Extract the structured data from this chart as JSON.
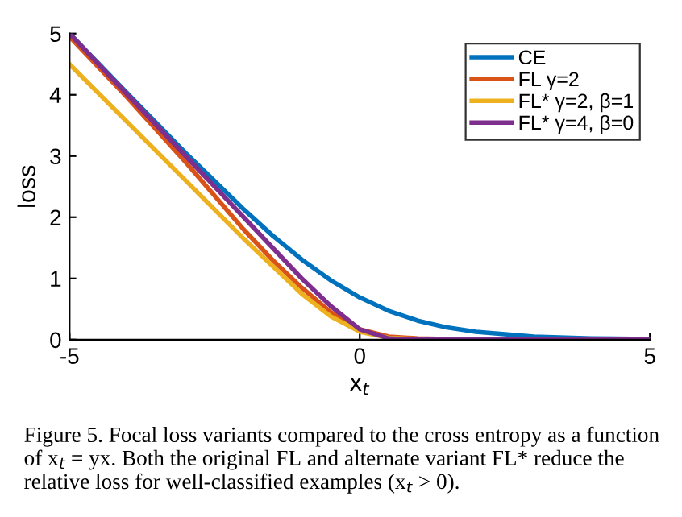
{
  "chart_data": {
    "type": "line",
    "xlabel": "x$_{t}$",
    "ylabel": "loss",
    "xlim": [
      -5,
      5
    ],
    "ylim": [
      0,
      5
    ],
    "xticks": [
      -5,
      0,
      5
    ],
    "yticks": [
      0,
      1,
      2,
      3,
      4,
      5
    ],
    "grid": false,
    "legend": "top right",
    "marker": "none",
    "line_style": "solid",
    "x": [
      -5,
      -4,
      -3,
      -2,
      -1.5,
      -1,
      -0.5,
      0,
      0.5,
      1,
      1.5,
      2,
      3,
      4,
      5
    ],
    "series": [
      {
        "name": "CE",
        "color": "#0072bd",
        "values": [
          5.0,
          4.02,
          3.05,
          2.13,
          1.7,
          1.31,
          0.97,
          0.69,
          0.47,
          0.31,
          0.2,
          0.13,
          0.05,
          0.02,
          0.01
        ]
      },
      {
        "name": "FL γ=2",
        "color": "#d95319",
        "values": [
          4.95,
          3.95,
          2.9,
          1.8,
          1.3,
          0.85,
          0.45,
          0.17,
          0.05,
          0.02,
          0.01,
          0.0,
          0.0,
          null,
          null
        ]
      },
      {
        "name": "FL* γ=2, β=1",
        "color": "#edb120",
        "values": [
          4.5,
          3.55,
          2.6,
          1.65,
          1.2,
          0.75,
          0.38,
          0.13,
          0.03,
          0.01,
          0.0,
          null,
          null,
          null,
          null
        ]
      },
      {
        "name": "FL* γ=4, β=0",
        "color": "#7e2f8e",
        "values": [
          5.0,
          4.0,
          3.0,
          2.0,
          1.5,
          1.0,
          0.55,
          0.17,
          0.02,
          0.0,
          0.0,
          0.0,
          0.0,
          0.0,
          0.0
        ]
      }
    ],
    "annotations": [
      "Figure 5. Focal loss variants compared to the cross entropy as a function of x$_{t}$ = yx. Both the original FL and alternate variant FL* reduce the relative loss for well-classified examples (x$_{t}$ > 0)."
    ]
  }
}
